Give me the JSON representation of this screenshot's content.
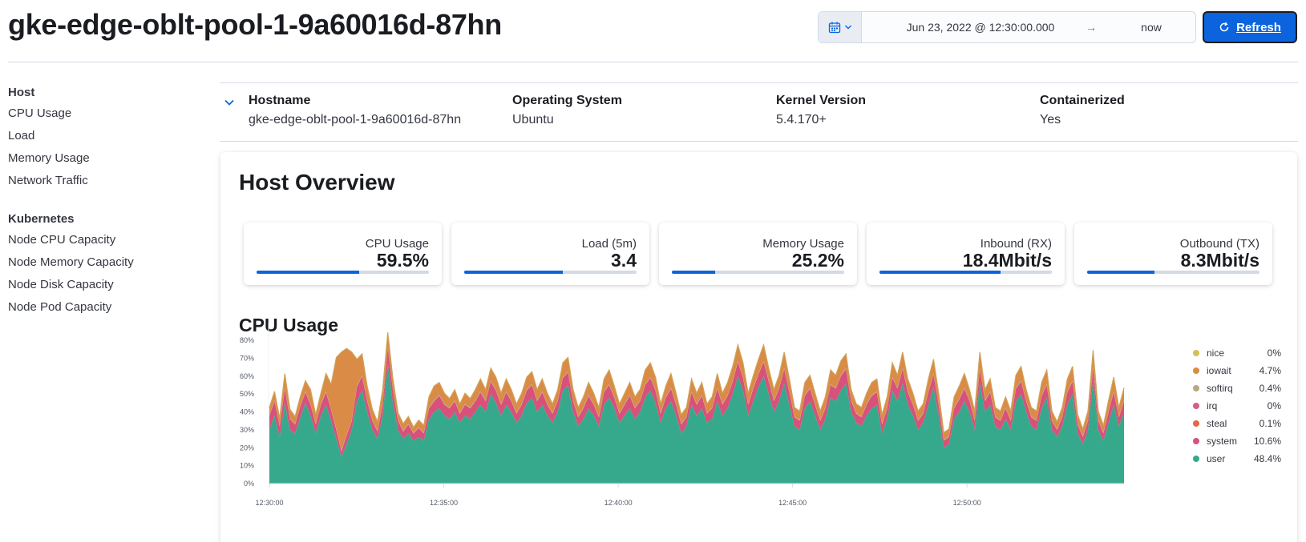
{
  "header": {
    "title": "gke-edge-oblt-pool-1-9a60016d-87hn",
    "datepicker": {
      "start": "Jun 23, 2022 @ 12:30:00.000",
      "arrow": "→",
      "end": "now"
    },
    "refresh_label": "Refresh"
  },
  "sidebar": {
    "groups": [
      {
        "heading": "Host",
        "items": [
          "CPU Usage",
          "Load",
          "Memory Usage",
          "Network Traffic"
        ]
      },
      {
        "heading": "Kubernetes",
        "items": [
          "Node CPU Capacity",
          "Node Memory Capacity",
          "Node Disk Capacity",
          "Node Pod Capacity"
        ]
      }
    ]
  },
  "meta": [
    {
      "label": "Hostname",
      "value": "gke-edge-oblt-pool-1-9a60016d-87hn"
    },
    {
      "label": "Operating System",
      "value": "Ubuntu"
    },
    {
      "label": "Kernel Version",
      "value": "5.4.170+"
    },
    {
      "label": "Containerized",
      "value": "Yes"
    }
  ],
  "overview": {
    "title": "Host Overview",
    "kpis": [
      {
        "label": "CPU Usage",
        "value": "59.5%",
        "fraction": 0.595
      },
      {
        "label": "Load (5m)",
        "value": "3.4",
        "fraction": 0.57
      },
      {
        "label": "Memory Usage",
        "value": "25.2%",
        "fraction": 0.252
      },
      {
        "label": "Inbound (RX)",
        "value": "18.4Mbit/s",
        "fraction": 0.7
      },
      {
        "label": "Outbound (TX)",
        "value": "8.3Mbit/s",
        "fraction": 0.39
      }
    ]
  },
  "colors": {
    "accent": "#0b64dd",
    "user": "#36a98c",
    "system": "#d6527a",
    "steal": "#e7664c",
    "irq": "#d36086",
    "softirq": "#b9a888",
    "iowait": "#da8b45",
    "nice": "#d6bf57"
  },
  "chart_data": {
    "type": "area",
    "title": "CPU Usage",
    "stacked": true,
    "y_ticks": [
      "0%",
      "10%",
      "20%",
      "30%",
      "40%",
      "50%",
      "60%",
      "70%",
      "80%"
    ],
    "ylim": [
      0,
      85
    ],
    "x_ticks": [
      "12:30:00",
      "12:35:00",
      "12:40:00",
      "12:45:00",
      "12:50:00"
    ],
    "x_tick_minutes": [
      0,
      5,
      10,
      15,
      20
    ],
    "x_range_minutes": [
      0,
      24.5
    ],
    "legend_position": "right",
    "legend": [
      {
        "name": "nice",
        "value": "0%",
        "color": "#d6bf57"
      },
      {
        "name": "iowait",
        "value": "4.7%",
        "color": "#da8b45"
      },
      {
        "name": "softirq",
        "value": "0.4%",
        "color": "#b9a888"
      },
      {
        "name": "irq",
        "value": "0%",
        "color": "#d36086"
      },
      {
        "name": "steal",
        "value": "0.1%",
        "color": "#e7664c"
      },
      {
        "name": "system",
        "value": "10.6%",
        "color": "#d6527a"
      },
      {
        "name": "user",
        "value": "48.4%",
        "color": "#36a98c"
      }
    ],
    "series": [
      {
        "name": "user",
        "color": "#36a98c",
        "values": [
          30,
          38,
          26,
          45,
          30,
          28,
          37,
          45,
          38,
          28,
          38,
          44,
          35,
          25,
          15,
          22,
          30,
          46,
          52,
          40,
          30,
          25,
          38,
          67,
          45,
          30,
          25,
          28,
          24,
          26,
          24,
          36,
          40,
          42,
          38,
          36,
          40,
          34,
          38,
          36,
          40,
          44,
          40,
          50,
          45,
          38,
          44,
          40,
          34,
          38,
          45,
          48,
          40,
          44,
          38,
          34,
          40,
          52,
          55,
          40,
          32,
          36,
          42,
          38,
          32,
          44,
          48,
          42,
          34,
          38,
          42,
          36,
          40,
          48,
          52,
          45,
          34,
          42,
          46,
          38,
          28,
          32,
          44,
          38,
          42,
          34,
          36,
          46,
          38,
          42,
          50,
          60,
          52,
          38,
          46,
          54,
          60,
          50,
          40,
          46,
          56,
          44,
          32,
          30,
          42,
          46,
          38,
          30,
          36,
          48,
          46,
          52,
          56,
          40,
          34,
          32,
          38,
          42,
          44,
          28,
          36,
          52,
          46,
          56,
          44,
          38,
          30,
          34,
          44,
          54,
          38,
          20,
          22,
          36,
          40,
          46,
          40,
          30,
          56,
          40,
          44,
          32,
          30,
          36,
          30,
          46,
          50,
          40,
          32,
          30,
          42,
          48,
          30,
          26,
          32,
          44,
          50,
          28,
          22,
          30,
          58,
          30,
          24,
          34,
          44,
          32,
          40
        ]
      },
      {
        "name": "system",
        "color": "#d6527a",
        "values": [
          8,
          8,
          6,
          8,
          6,
          5,
          6,
          6,
          6,
          5,
          6,
          7,
          6,
          5,
          3,
          5,
          5,
          8,
          8,
          6,
          5,
          4,
          6,
          9,
          7,
          5,
          4,
          5,
          4,
          5,
          4,
          6,
          6,
          7,
          6,
          6,
          6,
          5,
          6,
          6,
          6,
          7,
          6,
          7,
          7,
          6,
          7,
          6,
          5,
          6,
          7,
          7,
          6,
          7,
          6,
          5,
          6,
          7,
          7,
          6,
          5,
          6,
          7,
          6,
          5,
          7,
          7,
          6,
          5,
          6,
          7,
          6,
          6,
          7,
          7,
          7,
          5,
          6,
          7,
          6,
          5,
          5,
          7,
          6,
          7,
          5,
          6,
          7,
          6,
          7,
          7,
          8,
          7,
          6,
          7,
          7,
          8,
          7,
          6,
          7,
          8,
          7,
          5,
          5,
          7,
          7,
          6,
          5,
          6,
          7,
          7,
          8,
          8,
          6,
          5,
          5,
          6,
          7,
          7,
          5,
          6,
          7,
          7,
          8,
          7,
          6,
          5,
          5,
          7,
          7,
          6,
          4,
          4,
          6,
          7,
          7,
          6,
          5,
          8,
          6,
          7,
          5,
          5,
          6,
          5,
          7,
          7,
          6,
          5,
          5,
          7,
          7,
          5,
          4,
          5,
          7,
          7,
          5,
          4,
          5,
          7,
          5,
          4,
          6,
          7,
          5,
          6
        ]
      },
      {
        "name": "steal",
        "color": "#e7664c",
        "values": [
          0.1,
          0.1,
          0.1,
          0.1,
          0.1,
          0.1,
          0.1,
          0.1,
          0.1,
          0.1,
          0.1,
          0.1,
          0.1,
          0.1,
          0.1,
          0.1,
          0.1,
          0.1,
          0.1,
          0.1,
          0.1,
          0.1,
          0.1,
          0.1,
          0.1,
          0.1,
          0.1,
          0.1,
          0.1,
          0.1,
          0.1,
          0.1,
          0.1,
          0.1,
          0.1,
          0.1,
          0.1,
          0.1,
          0.1,
          0.1,
          0.1,
          0.1,
          0.1,
          0.1,
          0.1,
          0.1,
          0.1,
          0.1,
          0.1,
          0.1,
          0.1,
          0.1,
          0.1,
          0.1,
          0.1,
          0.1,
          0.1,
          0.1,
          0.1,
          0.1,
          0.1,
          0.1,
          0.1,
          0.1,
          0.1,
          0.1,
          0.1,
          0.1,
          0.1,
          0.1,
          0.1,
          0.1,
          0.1,
          0.1,
          0.1,
          0.1,
          0.1,
          0.1,
          0.1,
          0.1,
          0.1,
          0.1,
          0.1,
          0.1,
          0.1,
          0.1,
          0.1,
          0.1,
          0.1,
          0.1,
          0.1,
          0.1,
          0.1,
          0.1,
          0.1,
          0.1,
          0.1,
          0.1,
          0.1,
          0.1,
          0.1,
          0.1,
          0.1,
          0.1,
          0.1,
          0.1,
          0.1,
          0.1,
          0.1,
          0.1,
          0.1,
          0.1,
          0.1,
          0.1,
          0.1,
          0.1,
          0.1,
          0.1,
          0.1,
          0.1,
          0.1,
          0.1,
          0.1,
          0.1,
          0.1,
          0.1,
          0.1,
          0.1,
          0.1,
          0.1,
          0.1,
          0.1,
          0.1,
          0.1,
          0.1,
          0.1,
          0.1,
          0.1,
          0.1,
          0.1,
          0.1,
          0.1,
          0.1,
          0.1,
          0.1,
          0.1,
          0.1,
          0.1,
          0.1,
          0.1,
          0.1,
          0.1,
          0.1,
          0.1,
          0.1,
          0.1,
          0.1,
          0.1,
          0.1,
          0.1,
          0.1,
          0.1,
          0.1,
          0.1,
          0.1,
          0.1,
          0.1,
          0.1,
          0.1,
          0.1,
          0.1
        ]
      },
      {
        "name": "softirq",
        "color": "#b9a888",
        "values": [
          0.4,
          0.4,
          0.4,
          0.4,
          0.4,
          0.4,
          0.4,
          0.4,
          0.4,
          0.4,
          0.4,
          0.4,
          0.4,
          0.4,
          0.4,
          0.4,
          0.4,
          0.4,
          0.4,
          0.4,
          0.4,
          0.4,
          0.4,
          0.4,
          0.4,
          0.4,
          0.4,
          0.4,
          0.4,
          0.4,
          0.4,
          0.4,
          0.4,
          0.4,
          0.4,
          0.4,
          0.4,
          0.4,
          0.4,
          0.4,
          0.4,
          0.4,
          0.4,
          0.4,
          0.4,
          0.4,
          0.4,
          0.4,
          0.4,
          0.4,
          0.4,
          0.4,
          0.4,
          0.4,
          0.4,
          0.4,
          0.4,
          0.4,
          0.4,
          0.4,
          0.4,
          0.4,
          0.4,
          0.4,
          0.4,
          0.4,
          0.4,
          0.4,
          0.4,
          0.4,
          0.4,
          0.4,
          0.4,
          0.4,
          0.4,
          0.4,
          0.4,
          0.4,
          0.4,
          0.4,
          0.4,
          0.4,
          0.4,
          0.4,
          0.4,
          0.4,
          0.4,
          0.4,
          0.4,
          0.4,
          0.4,
          0.4,
          0.4,
          0.4,
          0.4,
          0.4,
          0.4,
          0.4,
          0.4,
          0.4,
          0.4,
          0.4,
          0.4,
          0.4,
          0.4,
          0.4,
          0.4,
          0.4,
          0.4,
          0.4,
          0.4,
          0.4,
          0.4,
          0.4,
          0.4,
          0.4,
          0.4,
          0.4,
          0.4,
          0.4,
          0.4,
          0.4,
          0.4,
          0.4,
          0.4,
          0.4,
          0.4,
          0.4,
          0.4,
          0.4,
          0.4,
          0.4,
          0.4,
          0.4,
          0.4,
          0.4,
          0.4,
          0.4,
          0.4,
          0.4,
          0.4,
          0.4,
          0.4,
          0.4,
          0.4,
          0.4,
          0.4,
          0.4,
          0.4,
          0.4,
          0.4,
          0.4,
          0.4,
          0.4,
          0.4,
          0.4,
          0.4,
          0.4,
          0.4,
          0.4,
          0.4,
          0.4,
          0.4,
          0.4,
          0.4,
          0.4,
          0.4,
          0.4,
          0.4,
          0.4,
          0.4
        ]
      },
      {
        "name": "iowait",
        "color": "#da8b45",
        "values": [
          4,
          5,
          4,
          8,
          5,
          4,
          5,
          6,
          8,
          5,
          6,
          10,
          14,
          40,
          55,
          48,
          38,
          15,
          12,
          8,
          6,
          5,
          8,
          8,
          6,
          4,
          4,
          4,
          3,
          4,
          4,
          6,
          8,
          7,
          6,
          5,
          6,
          5,
          6,
          5,
          6,
          7,
          6,
          7,
          7,
          6,
          7,
          6,
          5,
          6,
          7,
          7,
          6,
          7,
          6,
          5,
          6,
          8,
          8,
          6,
          5,
          6,
          7,
          6,
          5,
          7,
          8,
          6,
          5,
          6,
          7,
          6,
          6,
          8,
          8,
          7,
          5,
          6,
          8,
          6,
          5,
          5,
          7,
          6,
          7,
          5,
          6,
          8,
          6,
          7,
          8,
          9,
          8,
          6,
          7,
          8,
          9,
          7,
          6,
          7,
          9,
          7,
          5,
          5,
          7,
          7,
          6,
          5,
          6,
          8,
          7,
          8,
          8,
          6,
          5,
          5,
          6,
          7,
          7,
          5,
          6,
          8,
          7,
          9,
          7,
          6,
          5,
          5,
          7,
          8,
          6,
          4,
          4,
          6,
          7,
          8,
          6,
          5,
          9,
          6,
          7,
          5,
          5,
          6,
          5,
          7,
          8,
          6,
          5,
          5,
          7,
          8,
          5,
          4,
          5,
          7,
          8,
          5,
          4,
          5,
          9,
          5,
          4,
          6,
          8,
          5,
          7
        ]
      },
      {
        "name": "irq",
        "color": "#d36086",
        "values": [
          0,
          0,
          0,
          0,
          0,
          0,
          0,
          0,
          0,
          0,
          0,
          0,
          0,
          0,
          0,
          0,
          0,
          0,
          0,
          0,
          0,
          0,
          0,
          0,
          0,
          0,
          0,
          0,
          0,
          0,
          0,
          0,
          0,
          0,
          0,
          0,
          0,
          0,
          0,
          0,
          0,
          0,
          0,
          0,
          0,
          0,
          0,
          0,
          0,
          0,
          0,
          0,
          0,
          0,
          0,
          0,
          0,
          0,
          0,
          0,
          0,
          0,
          0,
          0,
          0,
          0,
          0,
          0,
          0,
          0,
          0,
          0,
          0,
          0,
          0,
          0,
          0,
          0,
          0,
          0,
          0,
          0,
          0,
          0,
          0,
          0,
          0,
          0,
          0,
          0,
          0,
          0,
          0,
          0,
          0,
          0,
          0,
          0,
          0,
          0,
          0,
          0,
          0,
          0,
          0,
          0,
          0,
          0,
          0,
          0,
          0,
          0,
          0,
          0,
          0,
          0,
          0,
          0,
          0,
          0,
          0,
          0,
          0,
          0,
          0,
          0,
          0,
          0,
          0,
          0,
          0,
          0,
          0,
          0,
          0,
          0,
          0,
          0,
          0,
          0,
          0,
          0,
          0,
          0,
          0,
          0,
          0,
          0,
          0,
          0,
          0,
          0,
          0,
          0,
          0,
          0,
          0,
          0,
          0,
          0,
          0,
          0,
          0,
          0,
          0,
          0,
          0
        ]
      },
      {
        "name": "nice",
        "color": "#d6bf57",
        "values": [
          0,
          0,
          0,
          0,
          0,
          0,
          0,
          0,
          0,
          0,
          0,
          0,
          0,
          0,
          0,
          0,
          0,
          0,
          0,
          0,
          0,
          0,
          0,
          0,
          0,
          0,
          0,
          0,
          0,
          0,
          0,
          0,
          0,
          0,
          0,
          0,
          0,
          0,
          0,
          0,
          0,
          0,
          0,
          0,
          0,
          0,
          0,
          0,
          0,
          0,
          0,
          0,
          0,
          0,
          0,
          0,
          0,
          0,
          0,
          0,
          0,
          0,
          0,
          0,
          0,
          0,
          0,
          0,
          0,
          0,
          0,
          0,
          0,
          0,
          0,
          0,
          0,
          0,
          0,
          0,
          0,
          0,
          0,
          0,
          0,
          0,
          0,
          0,
          0,
          0,
          0,
          0,
          0,
          0,
          0,
          0,
          0,
          0,
          0,
          0,
          0,
          0,
          0,
          0,
          0,
          0,
          0,
          0,
          0,
          0,
          0,
          0,
          0,
          0,
          0,
          0,
          0,
          0,
          0,
          0,
          0,
          0,
          0,
          0,
          0,
          0,
          0,
          0,
          0,
          0,
          0,
          0,
          0,
          0,
          0,
          0,
          0,
          0,
          0,
          0,
          0,
          0,
          0,
          0,
          0,
          0,
          0,
          0,
          0,
          0,
          0,
          0,
          0,
          0,
          0,
          0,
          0,
          0,
          0,
          0,
          0,
          0,
          0,
          0,
          0,
          0,
          0
        ]
      }
    ]
  }
}
